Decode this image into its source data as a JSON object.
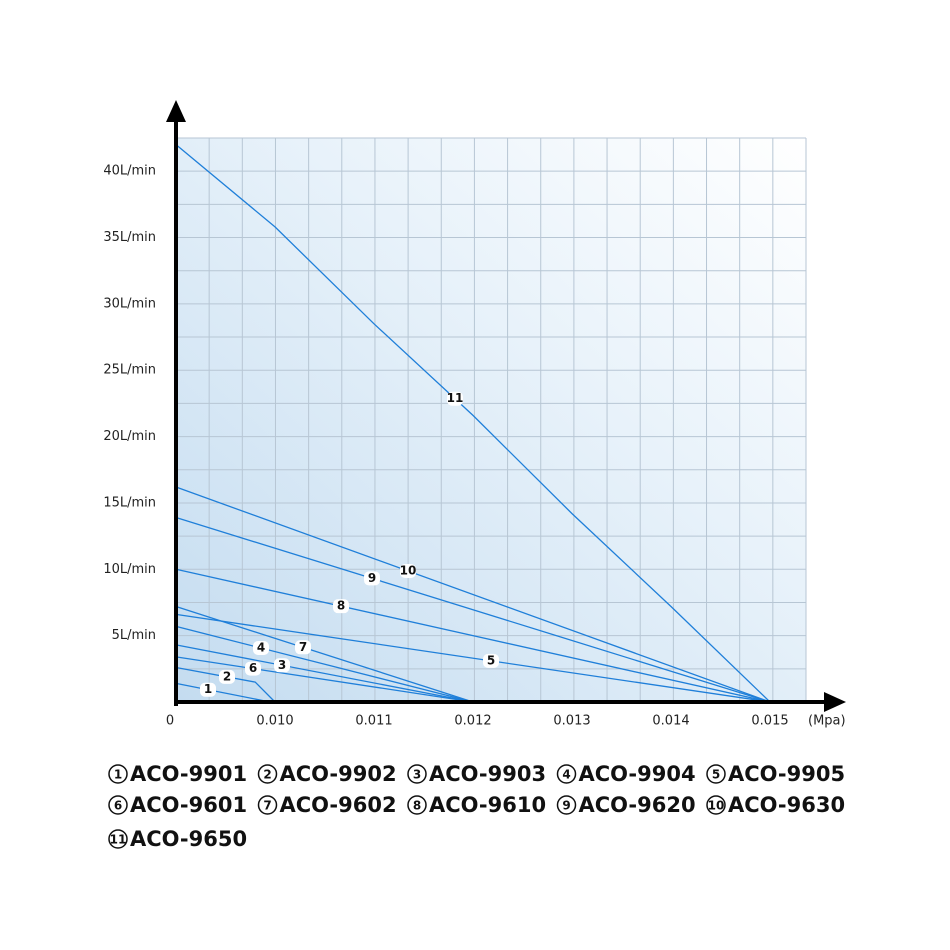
{
  "chart_data": {
    "type": "line",
    "x_label": "(Mpa)",
    "color": "#1f7fd9",
    "xlim": [
      0,
      0.01536
    ],
    "xticks": [
      0,
      {
        "value": 0.01,
        "label": "0.010"
      },
      {
        "value": 0.011,
        "label": "0.011"
      },
      {
        "value": 0.012,
        "label": "0.012"
      },
      {
        "value": 0.013,
        "label": "0.013"
      },
      {
        "value": 0.014,
        "label": "0.014"
      },
      {
        "value": 0.015,
        "label": "0.015"
      }
    ],
    "ylim": [
      0,
      42.5
    ],
    "yticks": [
      {
        "value": 5,
        "label": "5L/min"
      },
      {
        "value": 10,
        "label": "10L/min"
      },
      {
        "value": 15,
        "label": "15L/min"
      },
      {
        "value": 20,
        "label": "20L/min"
      },
      {
        "value": 25,
        "label": "25L/min"
      },
      {
        "value": 30,
        "label": "30L/min"
      },
      {
        "value": 35,
        "label": "35L/min"
      },
      {
        "value": 40,
        "label": "40L/min"
      }
    ],
    "series": [
      {
        "label": "1",
        "name": "ACO-9901",
        "x": [
          0,
          0.0095
        ],
        "values": [
          1.4,
          0
        ]
      },
      {
        "label": "2",
        "name": "ACO-9902",
        "x": [
          0,
          0.008,
          0.01
        ],
        "values": [
          2.6,
          1.5,
          0
        ]
      },
      {
        "label": "3",
        "name": "ACO-9903",
        "x": [
          0,
          0.012
        ],
        "values": [
          4.3,
          0
        ]
      },
      {
        "label": "4",
        "name": "ACO-9904",
        "x": [
          0,
          0.012
        ],
        "values": [
          5.7,
          0
        ]
      },
      {
        "label": "5",
        "name": "ACO-9905",
        "x": [
          0,
          0.015
        ],
        "values": [
          6.6,
          0
        ]
      },
      {
        "label": "6",
        "name": "ACO-9601",
        "x": [
          0,
          0.012
        ],
        "values": [
          3.4,
          0
        ]
      },
      {
        "label": "7",
        "name": "ACO-9602",
        "x": [
          0,
          0.012
        ],
        "values": [
          7.2,
          0
        ]
      },
      {
        "label": "8",
        "name": "ACO-9610",
        "x": [
          0,
          0.015
        ],
        "values": [
          10,
          0
        ]
      },
      {
        "label": "9",
        "name": "ACO-9620",
        "x": [
          0,
          0.015
        ],
        "values": [
          13.9,
          0
        ]
      },
      {
        "label": "10",
        "name": "ACO-9630",
        "x": [
          0,
          0.015
        ],
        "values": [
          16.2,
          0
        ]
      },
      {
        "label": "11",
        "name": "ACO-9650",
        "x": [
          0,
          0.01,
          0.011,
          0.012,
          0.013,
          0.014,
          0.015
        ],
        "values": [
          42,
          35.8,
          28.5,
          21.6,
          14.2,
          7.2,
          0
        ]
      }
    ]
  }
}
